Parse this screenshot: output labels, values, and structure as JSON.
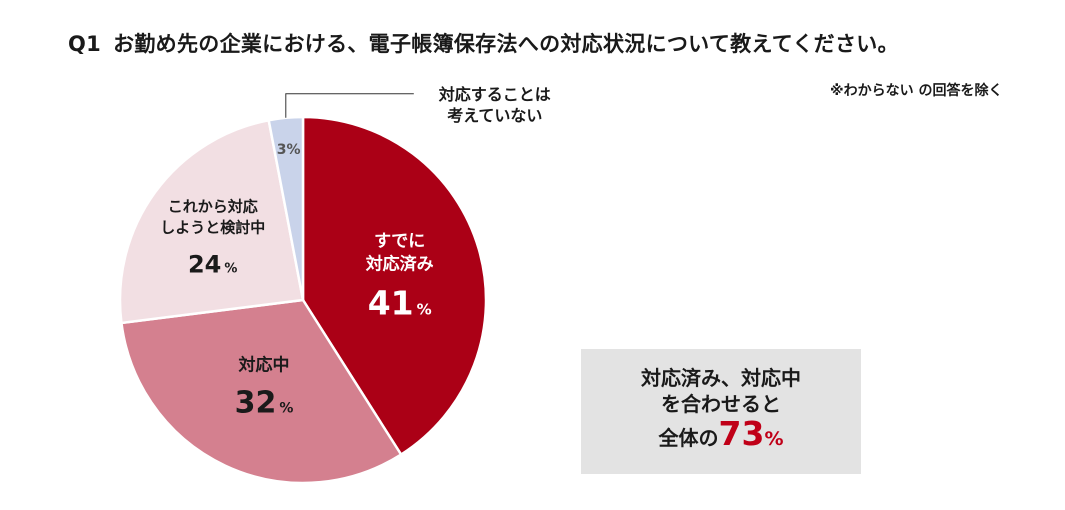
{
  "title": {
    "qnum": "Q1",
    "text": "お勤め先の企業における、電子帳簿保存法への対応状況について教えてください。"
  },
  "note": "※わからない の回答を除く",
  "chart_data": {
    "type": "pie",
    "unit": "%",
    "slices": [
      {
        "label_lines": [
          "すでに",
          "対応済み"
        ],
        "value": 41,
        "color": "#ab0016",
        "label_color": "#ffffff"
      },
      {
        "label_lines": [
          "対応中"
        ],
        "value": 32,
        "color": "#d4808f",
        "label_color": "#1a1a1a"
      },
      {
        "label_lines": [
          "これから対応",
          "しようと検討中"
        ],
        "value": 24,
        "color": "#f2dfe3",
        "label_color": "#1a1a1a"
      },
      {
        "label_lines": [
          "対応することは",
          "考えていない"
        ],
        "value": 3,
        "color": "#c9d3ea",
        "label_color": "#1a1a1a"
      }
    ]
  },
  "summary": {
    "line1": "対応済み、対応中",
    "line2": "を合わせると",
    "prefix": "全体の",
    "value": "73",
    "unit": "%"
  }
}
